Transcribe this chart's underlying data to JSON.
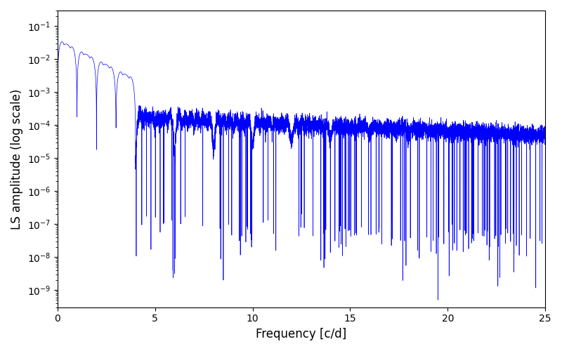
{
  "xlabel": "Frequency [c/d]",
  "ylabel": "LS amplitude (log scale)",
  "xlim": [
    0,
    25
  ],
  "ylim": [
    3e-10,
    0.3
  ],
  "line_color": "#0000ff",
  "line_width": 0.5,
  "background_color": "#ffffff",
  "figsize": [
    8.0,
    5.0
  ],
  "dpi": 100,
  "freq_max": 25.0,
  "n_points": 10000,
  "seed": 12345
}
